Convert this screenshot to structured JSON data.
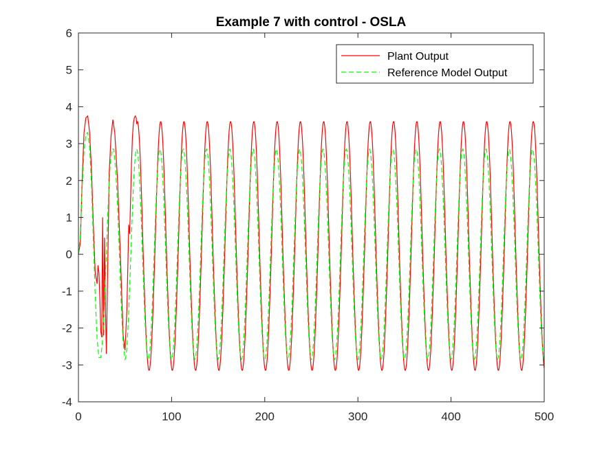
{
  "colors": {
    "background": "#ffffff",
    "axes": "#262626",
    "plant": "#ff0000",
    "reference": "#00ff00"
  },
  "chart_data": {
    "type": "line",
    "title": "Example 7 with control - OSLA",
    "xlabel": "",
    "ylabel": "",
    "xlim": [
      0,
      500
    ],
    "ylim": [
      -4,
      6
    ],
    "xticks": [
      0,
      100,
      200,
      300,
      400,
      500
    ],
    "yticks": [
      -4,
      -3,
      -2,
      -1,
      0,
      1,
      2,
      3,
      4,
      5,
      6
    ],
    "grid": false,
    "legend_position": "top-right",
    "series": [
      {
        "name": "Plant Output",
        "color": "#ff0000",
        "style": "solid",
        "x": [
          0,
          2,
          4,
          6,
          8,
          10,
          12,
          14,
          16,
          18,
          20,
          21,
          22,
          23,
          24,
          25,
          26,
          27,
          28,
          29,
          30,
          31,
          32,
          33,
          35,
          37,
          39,
          42,
          45,
          48,
          50,
          52,
          54,
          55,
          56,
          57,
          58,
          59,
          60,
          61,
          62
        ],
        "y": [
          0,
          0.3,
          2.0,
          3.3,
          3.7,
          3.75,
          3.3,
          2.3,
          0.8,
          -0.5,
          -0.8,
          -0.3,
          -0.5,
          -1.2,
          -2.1,
          -2.25,
          1.0,
          -2.2,
          0.45,
          -1.5,
          -2.7,
          -1.0,
          0.5,
          2.2,
          3.2,
          3.65,
          3.3,
          2.0,
          0.0,
          -2.2,
          -2.6,
          -1.5,
          0.8,
          0.55,
          1.5,
          2.5,
          3.2,
          3.55,
          3.7,
          3.75,
          3.7
        ]
      },
      {
        "name": "Reference Model Output",
        "color": "#00ff00",
        "style": "dashed",
        "x": [
          0,
          2,
          4,
          6,
          8,
          10,
          12,
          14,
          16,
          18,
          20,
          22,
          24,
          26,
          28,
          30,
          32,
          34,
          36,
          38,
          40,
          42,
          44,
          46,
          48,
          50
        ],
        "y": [
          0,
          0.5,
          1.8,
          2.8,
          3.25,
          3.3,
          2.9,
          1.9,
          0.4,
          -1.1,
          -2.3,
          -2.8,
          -2.8,
          -2.3,
          -1.3,
          0.0,
          1.4,
          2.4,
          2.85,
          2.85,
          2.3,
          1.3,
          0.0,
          -1.4,
          -2.4,
          -2.85
        ]
      }
    ],
    "steady_state": {
      "period": 25,
      "reference_amplitude": 2.85,
      "plant_max": 3.6,
      "plant_min": -3.15
    }
  }
}
